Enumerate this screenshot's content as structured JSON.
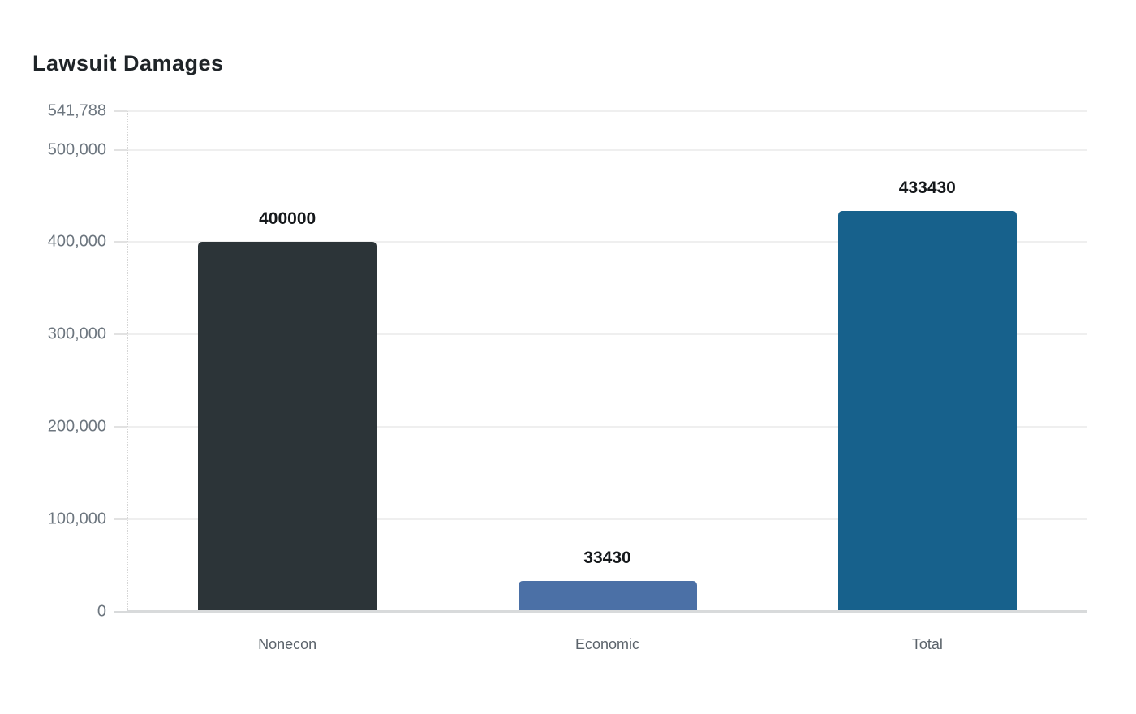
{
  "page": {
    "background": "#ffffff"
  },
  "chart_data": {
    "type": "bar",
    "title": "Lawsuit Damages",
    "categories": [
      "Nonecon",
      "Economic",
      "Total"
    ],
    "values": [
      400000,
      33430,
      433430
    ],
    "value_labels": [
      "400000",
      "33430",
      "433430"
    ],
    "bar_colors": [
      "#2c3438",
      "#4b70a6",
      "#17618c"
    ],
    "xlabel": "",
    "ylabel": "",
    "ylim": [
      0,
      541788
    ],
    "yticks": [
      {
        "value": 0,
        "label": "0"
      },
      {
        "value": 100000,
        "label": "100,000"
      },
      {
        "value": 200000,
        "label": "200,000"
      },
      {
        "value": 300000,
        "label": "300,000"
      },
      {
        "value": 400000,
        "label": "400,000"
      },
      {
        "value": 500000,
        "label": "500,000"
      },
      {
        "value": 541788,
        "label": "541,788"
      }
    ],
    "grid": true,
    "legend": "none",
    "styles": {
      "grid_color": "#efefef",
      "baseline_color": "#d8dadb",
      "axis_label_color": "#6d767f",
      "value_label_color": "#15181b",
      "title_color": "#1f2428"
    }
  }
}
